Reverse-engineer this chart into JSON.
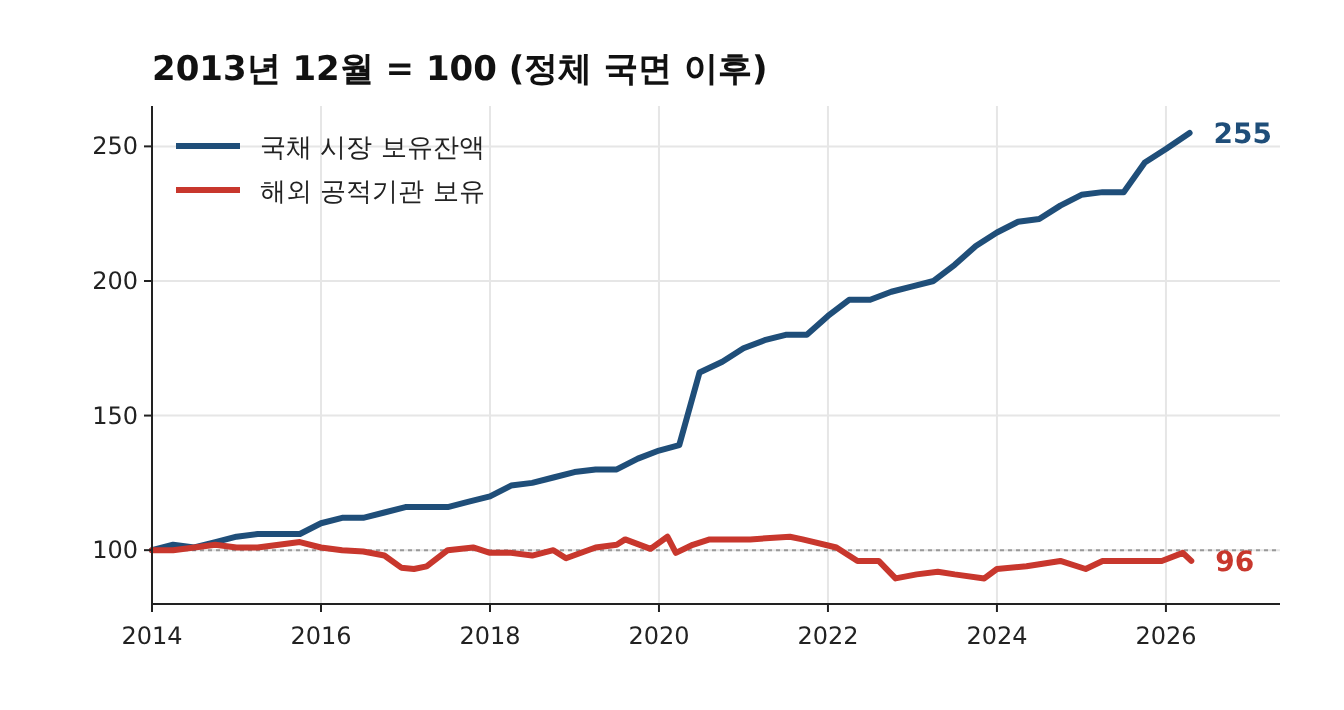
{
  "chart_data": {
    "type": "line",
    "title": "2013년 12월 = 100 (정체 국면 이후)",
    "xlim": [
      2014,
      2027.35
    ],
    "xticks": [
      2014,
      2016,
      2018,
      2020,
      2022,
      2024,
      2026
    ],
    "ylim": [
      80,
      265
    ],
    "yticks": [
      100,
      150,
      200,
      250
    ],
    "grid": true,
    "legend": "top left",
    "line_style": "solid",
    "marker": "none",
    "ref_lines": [
      {
        "axis": "y",
        "value": 100,
        "color": "#999999",
        "line_style": "dotted"
      }
    ],
    "series": [
      {
        "name": "국채 시장 보유잔액",
        "color": "#1f4e79",
        "x": [
          2014,
          2014.25,
          2014.5,
          2014.75,
          2015,
          2015.25,
          2015.5,
          2015.75,
          2016,
          2016.25,
          2016.5,
          2016.75,
          2017,
          2017.25,
          2017.5,
          2017.75,
          2018,
          2018.25,
          2018.5,
          2018.75,
          2019,
          2019.25,
          2019.5,
          2019.75,
          2020,
          2020.24,
          2020.48,
          2020.75,
          2021,
          2021.25,
          2021.5,
          2021.75,
          2022,
          2022.25,
          2022.5,
          2022.75,
          2023,
          2023.25,
          2023.5,
          2023.75,
          2024,
          2024.25,
          2024.5,
          2024.75,
          2025,
          2025.25,
          2025.5,
          2025.75,
          2026,
          2026.28
        ],
        "values": [
          100,
          102,
          101,
          103,
          105,
          106,
          106,
          106,
          110,
          112,
          112,
          114,
          116,
          116,
          116,
          118,
          120,
          124,
          125,
          127,
          129,
          130,
          130,
          134,
          137,
          139,
          166,
          170,
          175,
          178,
          180,
          180,
          187,
          193,
          193,
          196,
          198,
          200,
          206,
          213,
          218,
          222,
          223,
          228,
          232,
          233,
          233,
          244,
          249,
          255
        ]
      },
      {
        "name": "해외 공적기관 보유",
        "color": "#c8372d",
        "x": [
          2014,
          2014.25,
          2014.5,
          2014.75,
          2015,
          2015.25,
          2015.5,
          2015.75,
          2016,
          2016.25,
          2016.5,
          2016.75,
          2016.95,
          2017.1,
          2017.25,
          2017.5,
          2017.8,
          2018,
          2018.25,
          2018.5,
          2018.75,
          2018.9,
          2019.25,
          2019.5,
          2019.6,
          2019.9,
          2020.1,
          2020.2,
          2020.4,
          2020.6,
          2021.08,
          2021.55,
          2021.7,
          2022.1,
          2022.35,
          2022.6,
          2022.8,
          2023.05,
          2023.3,
          2023.5,
          2023.85,
          2024,
          2024.35,
          2024.75,
          2025.05,
          2025.25,
          2025.65,
          2025.95,
          2026.2,
          2026.3
        ],
        "values": [
          100,
          100,
          101,
          102,
          101,
          101,
          102,
          103,
          101,
          100,
          99.5,
          98,
          93.5,
          93,
          94,
          100,
          101,
          99,
          99,
          98,
          100,
          97,
          101,
          102,
          104,
          100.5,
          105,
          99,
          102,
          104,
          104,
          105,
          104,
          101,
          96,
          96,
          89.5,
          91,
          92,
          91,
          89.5,
          93,
          94,
          96,
          93,
          96,
          96,
          96,
          99,
          96
        ]
      }
    ],
    "annotations": [
      {
        "text": "255",
        "x": 2026.28,
        "y": 255
      },
      {
        "text": "96",
        "x": 2026.3,
        "y": 96
      }
    ]
  }
}
